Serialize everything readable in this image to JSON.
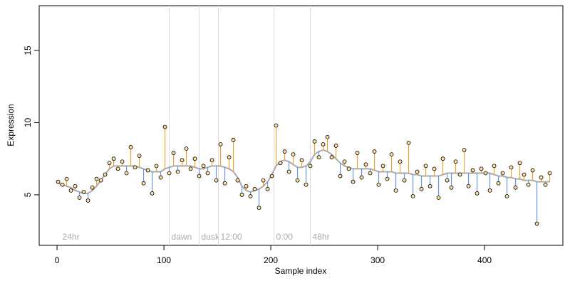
{
  "chart_data": {
    "type": "scatter",
    "x_label": "Sample index",
    "y_label": "Expression",
    "x": [
      1,
      5,
      9,
      13,
      17,
      21,
      25,
      29,
      33,
      37,
      41,
      45,
      49,
      53,
      57,
      61,
      65,
      69,
      73,
      77,
      81,
      85,
      89,
      93,
      97,
      101,
      105,
      109,
      113,
      117,
      121,
      125,
      129,
      133,
      137,
      141,
      145,
      149,
      153,
      157,
      161,
      165,
      169,
      173,
      177,
      181,
      185,
      189,
      193,
      197,
      201,
      205,
      209,
      213,
      217,
      221,
      225,
      229,
      233,
      237,
      241,
      245,
      249,
      253,
      257,
      261,
      265,
      269,
      273,
      277,
      281,
      285,
      289,
      293,
      297,
      301,
      305,
      309,
      313,
      317,
      321,
      325,
      329,
      333,
      337,
      341,
      345,
      349,
      353,
      357,
      361,
      365,
      369,
      373,
      377,
      381,
      385,
      389,
      393,
      397,
      401,
      405,
      409,
      413,
      417,
      421,
      425,
      429,
      433,
      437,
      441,
      445,
      449,
      453,
      457,
      461
    ],
    "values": [
      5.9,
      5.7,
      6.1,
      5.3,
      5.6,
      4.8,
      5.2,
      4.6,
      5.5,
      6.1,
      6.0,
      6.4,
      7.2,
      7.5,
      6.8,
      7.3,
      6.5,
      8.3,
      6.9,
      7.7,
      5.8,
      6.7,
      5.1,
      7.0,
      6.2,
      9.7,
      6.5,
      7.9,
      6.6,
      7.4,
      8.2,
      6.8,
      7.5,
      6.3,
      7.0,
      6.5,
      7.4,
      6.0,
      8.5,
      5.8,
      7.6,
      8.8,
      6.0,
      5.0,
      5.6,
      4.9,
      5.4,
      4.1,
      6.0,
      5.4,
      6.3,
      9.8,
      7.2,
      8.0,
      6.6,
      7.8,
      6.0,
      7.4,
      5.7,
      7.0,
      8.7,
      7.6,
      8.5,
      9.0,
      7.6,
      8.4,
      6.3,
      7.3,
      6.8,
      5.9,
      7.9,
      6.2,
      7.1,
      6.5,
      8.0,
      5.7,
      7.0,
      6.1,
      7.8,
      5.3,
      7.3,
      6.0,
      8.6,
      4.9,
      6.6,
      5.4,
      7.0,
      5.6,
      6.8,
      4.8,
      7.5,
      6.0,
      5.5,
      7.3,
      6.4,
      8.1,
      5.6,
      6.7,
      5.1,
      6.8,
      6.5,
      5.3,
      7.0,
      5.8,
      6.5,
      4.9,
      6.9,
      5.5,
      7.2,
      6.4,
      5.7,
      6.7,
      3.0,
      6.2,
      5.7,
      6.5
    ],
    "fit": [
      5.8,
      5.7,
      5.6,
      5.5,
      5.3,
      5.2,
      5.1,
      5.1,
      5.3,
      5.6,
      6.0,
      6.4,
      6.8,
      7.0,
      7.0,
      7.0,
      7.0,
      7.0,
      7.0,
      6.9,
      6.8,
      6.7,
      6.6,
      6.6,
      6.6,
      6.8,
      6.9,
      7.0,
      7.0,
      7.0,
      7.0,
      7.0,
      6.9,
      6.8,
      6.8,
      6.9,
      7.0,
      7.0,
      7.0,
      6.9,
      6.8,
      6.6,
      6.2,
      5.6,
      5.3,
      5.2,
      5.3,
      5.4,
      5.6,
      5.9,
      6.4,
      7.0,
      7.3,
      7.4,
      7.3,
      7.1,
      6.9,
      6.9,
      7.0,
      7.3,
      7.8,
      8.0,
      8.1,
      8.0,
      7.8,
      7.5,
      7.2,
      7.0,
      6.9,
      6.8,
      6.8,
      6.8,
      6.8,
      6.8,
      6.7,
      6.6,
      6.6,
      6.6,
      6.6,
      6.5,
      6.5,
      6.5,
      6.5,
      6.4,
      6.4,
      6.3,
      6.3,
      6.3,
      6.3,
      6.3,
      6.4,
      6.5,
      6.5,
      6.5,
      6.5,
      6.5,
      6.5,
      6.5,
      6.5,
      6.5,
      6.5,
      6.5,
      6.4,
      6.3,
      6.3,
      6.2,
      6.2,
      6.1,
      6.1,
      6.0,
      6.0,
      6.0,
      5.9,
      5.9,
      5.9,
      5.9
    ],
    "annotations": [
      {
        "x": 3,
        "label": "24hr",
        "line": false
      },
      {
        "x": 105,
        "label": "dawn",
        "line": true
      },
      {
        "x": 133,
        "label": "dusk",
        "line": true
      },
      {
        "x": 151,
        "label": "12:00",
        "line": true
      },
      {
        "x": 203,
        "label": "0:00",
        "line": true
      },
      {
        "x": 237,
        "label": "48hr",
        "line": true
      }
    ],
    "xlim": [
      -16.7,
      473.3
    ],
    "ylim": [
      1.5,
      18.1
    ],
    "xticks": [
      0,
      100,
      200,
      300,
      400
    ],
    "yticks": [
      5,
      10,
      15
    ],
    "point_fill": "#ffe0a0",
    "above_color": "#f0a030",
    "below_color": "#6495ed",
    "fit_color": "#aaaaaa",
    "annotation_color": "#dddddd"
  }
}
